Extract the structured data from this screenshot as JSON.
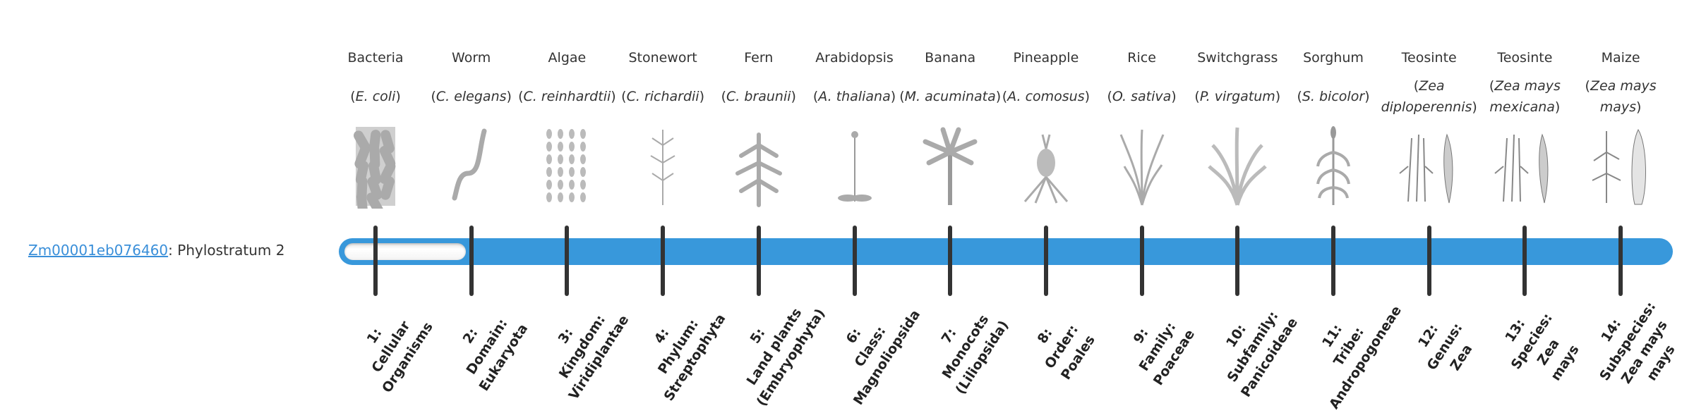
{
  "gene": {
    "id": "Zm00001eb076460",
    "suffix": ": Phylostratum 2"
  },
  "colors": {
    "bar": "#3898db",
    "link": "#3a8fd9",
    "tick": "#333333"
  },
  "current_stratum": 2,
  "total_strata": 14,
  "organisms": [
    {
      "common": "Bacteria",
      "species": "E. coli",
      "icon": "bacteria-icon"
    },
    {
      "common": "Worm",
      "species": "C. elegans",
      "icon": "worm-icon"
    },
    {
      "common": "Algae",
      "species": "C. reinhardtii",
      "icon": "algae-icon"
    },
    {
      "common": "Stonewort",
      "species": "C. richardii",
      "icon": "stonewort-icon"
    },
    {
      "common": "Fern",
      "species": "C. braunii",
      "icon": "fern-icon"
    },
    {
      "common": "Arabidopsis",
      "species": "A. thaliana",
      "icon": "arabidopsis-icon"
    },
    {
      "common": "Banana",
      "species": "M. acuminata",
      "icon": "banana-icon"
    },
    {
      "common": "Pineapple",
      "species": "A. comosus",
      "icon": "pineapple-icon"
    },
    {
      "common": "Rice",
      "species": "O. sativa",
      "icon": "rice-icon"
    },
    {
      "common": "Switchgrass",
      "species": "P. virgatum",
      "icon": "switchgrass-icon"
    },
    {
      "common": "Sorghum",
      "species": "S. bicolor",
      "icon": "sorghum-icon"
    },
    {
      "common": "Teosinte",
      "species": "Zea diploperennis",
      "icon": "teosinte-icon"
    },
    {
      "common": "Teosinte",
      "species": "Zea mays mexicana",
      "icon": "teosinte-icon"
    },
    {
      "common": "Maize",
      "species": "Zea mays mays",
      "icon": "maize-icon"
    }
  ],
  "strata": [
    "1:\nCellular\nOrganisms",
    "2:\nDomain:\nEukaryota",
    "3:\nKingdom:\nViridiplantae",
    "4:\nPhylum:\nStreptophyta",
    "5:\nLand plants\n(Embryophyta)",
    "6:\nClass:\nMagnoliopsida",
    "7:\nMonocots\n(Liliopsida)",
    "8:\nOrder:\nPoales",
    "9:\nFamily:\nPoaceae",
    "10:\nSubfamily:\nPanicoideae",
    "11:\nTribe:\nAndropogoneae",
    "12:\nGenus:\nZea",
    "13:\nSpecies:\nZea\nmays",
    "14:\nSubspecies:\nZea mays\nmays"
  ]
}
